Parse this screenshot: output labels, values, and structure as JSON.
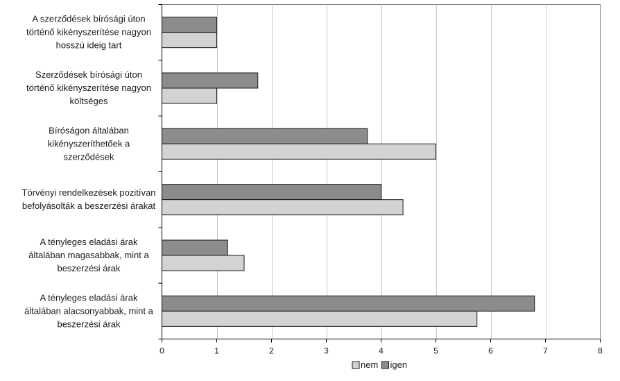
{
  "chart_data": {
    "type": "bar",
    "orientation": "horizontal",
    "categories": [
      [
        "A szerződések bírósági úton",
        "történő kikényszerítése nagyon",
        "hosszú ideig tart"
      ],
      [
        "Szerződések bírósági úton",
        "történő kikényszerítése nagyon",
        "költséges"
      ],
      [
        "Bíróságon általában",
        "kikényszeríthetőek a",
        "szerződések"
      ],
      [
        "Törvényi rendelkezések pozitívan",
        "befolyásolták a beszerzési árakat"
      ],
      [
        "A tényleges eladási árak",
        "általában magasabbak, mint a",
        "beszerzési árak"
      ],
      [
        "A tényleges eladási árak",
        "általában alacsonyabbak, mint a",
        "beszerzési árak"
      ]
    ],
    "series": [
      {
        "name": "igen",
        "color": "#8c8c8c",
        "values": [
          1.0,
          1.75,
          3.75,
          4.0,
          1.2,
          6.8
        ]
      },
      {
        "name": "nem",
        "color": "#d3d3d3",
        "values": [
          1.0,
          1.0,
          5.0,
          4.4,
          1.5,
          5.75
        ]
      }
    ],
    "xlim": [
      0,
      8
    ],
    "xticks": [
      "0",
      "1",
      "2",
      "3",
      "4",
      "5",
      "6",
      "7",
      "8"
    ],
    "grid": true,
    "legend_position": "bottom",
    "legend_order": [
      "nem",
      "igen"
    ],
    "title": "",
    "xlabel": "",
    "ylabel": ""
  }
}
